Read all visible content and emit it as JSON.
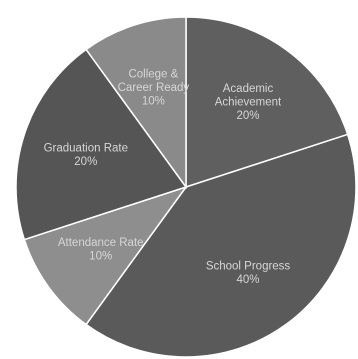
{
  "chart_data": {
    "type": "pie",
    "title": "",
    "direction": "clockwise",
    "start": "12 o'clock",
    "slices": [
      {
        "name_lines": [
          "Academic",
          "Achievement"
        ],
        "value": 20,
        "value_label": "20%",
        "color": "#5f5f5f"
      },
      {
        "name_lines": [
          "School Progress"
        ],
        "value": 40,
        "value_label": "40%",
        "color": "#5a5a5a"
      },
      {
        "name_lines": [
          "Attendance Rate"
        ],
        "value": 10,
        "value_label": "10%",
        "color": "#8e8e8e"
      },
      {
        "name_lines": [
          "Graduation Rate"
        ],
        "value": 20,
        "value_label": "20%",
        "color": "#555555"
      },
      {
        "name_lines": [
          "College &",
          "Career Ready"
        ],
        "value": 10,
        "value_label": "10%",
        "color": "#8a8a8a"
      }
    ]
  }
}
